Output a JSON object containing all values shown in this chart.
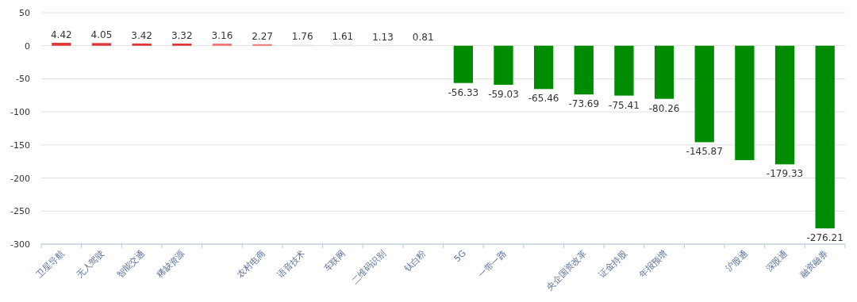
{
  "chart_data": {
    "type": "bar",
    "categories": [
      "卫星导航",
      "无人驾驶",
      "智能交通",
      "稀缺资源",
      null,
      "农村电商",
      "语音技术",
      "车联网",
      "二维码识别",
      "钛白粉",
      "5G",
      "一带一路",
      null,
      "央企国资改革",
      "证金持股",
      "年报预增",
      null,
      "沪股通",
      "深股通",
      "融资融券"
    ],
    "values": [
      4.42,
      4.05,
      3.42,
      3.32,
      3.16,
      2.27,
      1.76,
      1.61,
      1.13,
      0.81,
      -56.33,
      -59.03,
      -65.46,
      -73.69,
      -75.41,
      -80.26,
      -145.87,
      -173,
      -179.33,
      -276.21
    ],
    "value_labels": [
      "4.42",
      "4.05",
      "3.42",
      "3.32",
      "3.16",
      "2.27",
      "1.76",
      "1.61",
      "1.13",
      "0.81",
      "-56.33",
      "-59.03",
      "-65.46",
      "-73.69",
      "-75.41",
      "-80.26",
      "-145.87",
      null,
      "-179.33",
      "-276.21"
    ],
    "colors": [
      "#e0383a",
      "#e0383a",
      "#e0383a",
      "#e0383a",
      "#f07070",
      "#f07070",
      "#e6e6e6",
      "#e6e6e6",
      "#e6e6e6",
      "#e6e6e6",
      "#008c00",
      "#008c00",
      "#008c00",
      "#008c00",
      "#008c00",
      "#008c00",
      "#008c00",
      "#008c00",
      "#008c00",
      "#008c00"
    ],
    "ylim": [
      -300,
      50
    ],
    "yticks": [
      -300,
      -250,
      -200,
      -150,
      -100,
      -50,
      0,
      50
    ],
    "grid": "y"
  }
}
